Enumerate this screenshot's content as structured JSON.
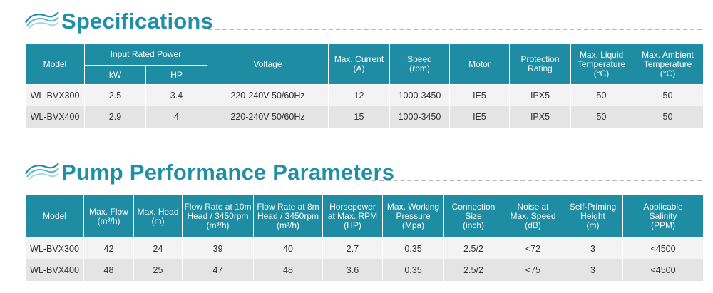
{
  "sections": [
    {
      "title": "Specifications",
      "table": {
        "header_top": [
          "Model",
          "Input Rated Power",
          "Voltage",
          "Max. Current\n(A)",
          "Speed\n(rpm)",
          "Motor",
          "Protection\nRating",
          "Max. Liquid\nTemperature\n(°C)",
          "Max. Ambient\nTemperature\n(°C)"
        ],
        "header_sub": [
          "kW",
          "HP"
        ],
        "rows": [
          [
            "WL-BVX300",
            "2.5",
            "3.4",
            "220-240V 50/60Hz",
            "12",
            "1000-3450",
            "IE5",
            "IPX5",
            "50",
            "50"
          ],
          [
            "WL-BVX400",
            "2.9",
            "4",
            "220-240V 50/60Hz",
            "15",
            "1000-3450",
            "IE5",
            "IPX5",
            "50",
            "50"
          ]
        ]
      }
    },
    {
      "title": "Pump Performance Parameters",
      "table": {
        "headers": [
          "Model",
          "Max. Flow\n(m³/h)",
          "Max. Head\n(m)",
          "Flow Rate at 10m\nHead / 3450rpm\n(m³/h)",
          "Flow Rate at 8m\nHead / 3450rpm\n(m³/h)",
          "Horsepower\nat Max. RPM\n(HP)",
          "Max. Working\nPressure\n(Mpa)",
          "Connection\nSize\n(inch)",
          "Noise at\nMax. Speed\n(dB)",
          "Self-Priming\nHeight\n(m)",
          "Applicable\nSalinity\n(PPM)"
        ],
        "rows": [
          [
            "WL-BVX300",
            "42",
            "24",
            "39",
            "40",
            "2.7",
            "0.35",
            "2.5/2",
            "<72",
            "3",
            "<4500"
          ],
          [
            "WL-BVX400",
            "48",
            "25",
            "47",
            "48",
            "3.6",
            "0.35",
            "2.5/2",
            "<75",
            "3",
            "<4500"
          ]
        ]
      }
    }
  ],
  "colors": {
    "accent": "#1f8fa6",
    "header_bg": "#1e8ca3",
    "row_light": "#f3f3f3",
    "row_dark": "#e4e4e4"
  },
  "icons": {
    "section_logo": "wave-logo-icon"
  }
}
